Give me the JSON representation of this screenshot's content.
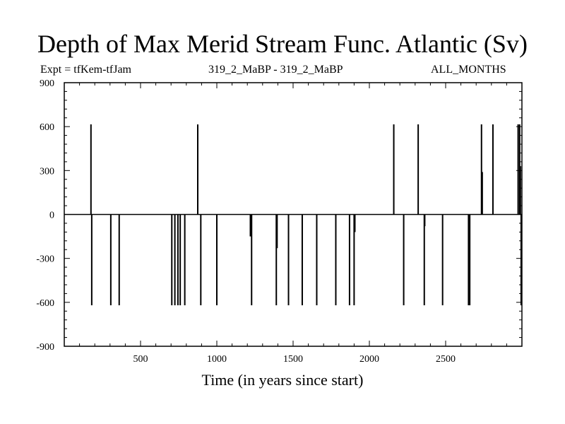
{
  "header": {
    "title": "Depth of Max Merid Stream Func. Atlantic (Sv)",
    "experiment": "Expt = tfKem-tfJam",
    "run_label": "319_2_MaBP - 319_2_MaBP",
    "period": "ALL_MONTHS"
  },
  "chart_data": {
    "type": "line",
    "title": "Depth of Max Merid Stream Func. Atlantic (Sv)",
    "xlabel": "Time (in years since start)",
    "ylabel": "",
    "xlim": [
      0,
      3000
    ],
    "ylim": [
      -900,
      900
    ],
    "xticks": [
      500,
      1000,
      1500,
      2000,
      2500
    ],
    "yticks": [
      -900,
      -600,
      -300,
      0,
      300,
      600,
      900
    ],
    "grid": false,
    "baseline": 0,
    "series": [
      {
        "spikes": [
          {
            "x": 175,
            "y": 615
          },
          {
            "x": 180,
            "y": -620
          },
          {
            "x": 305,
            "y": -620
          },
          {
            "x": 360,
            "y": -620
          },
          {
            "x": 705,
            "y": -620
          },
          {
            "x": 725,
            "y": -620
          },
          {
            "x": 745,
            "y": -620
          },
          {
            "x": 760,
            "y": -620
          },
          {
            "x": 790,
            "y": -620
          },
          {
            "x": 875,
            "y": 615
          },
          {
            "x": 895,
            "y": -620
          },
          {
            "x": 1000,
            "y": -620
          },
          {
            "x": 1220,
            "y": -150
          },
          {
            "x": 1228,
            "y": -620
          },
          {
            "x": 1390,
            "y": -620
          },
          {
            "x": 1395,
            "y": -230
          },
          {
            "x": 1470,
            "y": -620
          },
          {
            "x": 1560,
            "y": -620
          },
          {
            "x": 1655,
            "y": -620
          },
          {
            "x": 1780,
            "y": -620
          },
          {
            "x": 1870,
            "y": -620
          },
          {
            "x": 1900,
            "y": -620
          },
          {
            "x": 1905,
            "y": -120
          },
          {
            "x": 2160,
            "y": 615
          },
          {
            "x": 2225,
            "y": -620
          },
          {
            "x": 2320,
            "y": 615
          },
          {
            "x": 2360,
            "y": -620
          },
          {
            "x": 2363,
            "y": -80
          },
          {
            "x": 2480,
            "y": -620
          },
          {
            "x": 2650,
            "y": -620
          },
          {
            "x": 2658,
            "y": -620
          },
          {
            "x": 2735,
            "y": 615
          },
          {
            "x": 2740,
            "y": 290
          },
          {
            "x": 2810,
            "y": 615
          },
          {
            "x": 2975,
            "y": 615
          },
          {
            "x": 2985,
            "y": 615
          },
          {
            "x": 2990,
            "y": 330
          },
          {
            "x": 2995,
            "y": -620
          }
        ]
      }
    ]
  }
}
